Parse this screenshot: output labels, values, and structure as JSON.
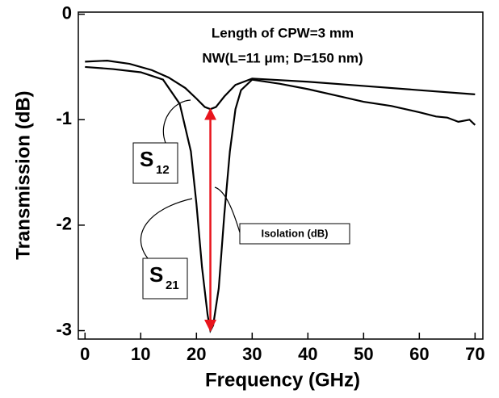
{
  "chart_data": {
    "type": "line",
    "x_label": "Frequency (GHz)",
    "y_label": "Transmission (dB)",
    "annotations": [
      "Length of CPW=3 mm",
      "NW(L=11 μm; D=150 nm)",
      "Isolation (dB)"
    ],
    "xlim": [
      -1.2,
      71.4
    ],
    "ylim": [
      -3.08,
      0.02
    ],
    "xticks": [
      0,
      10,
      20,
      30,
      40,
      50,
      60,
      70
    ],
    "yticks": [
      0,
      -1,
      -2,
      -3
    ],
    "series": [
      {
        "label": {
          "text": "S",
          "subscript": "21"
        },
        "color": "#000000",
        "x": [
          0,
          5,
          10,
          14,
          17,
          19,
          20,
          21,
          22,
          22.5,
          23,
          24,
          25,
          26,
          27,
          28,
          30,
          35,
          40,
          45,
          50,
          55,
          60,
          63,
          65,
          67,
          69,
          70
        ],
        "values": [
          -0.5,
          -0.52,
          -0.55,
          -0.62,
          -0.85,
          -1.3,
          -1.8,
          -2.4,
          -2.85,
          -3.0,
          -2.95,
          -2.6,
          -1.9,
          -1.3,
          -0.9,
          -0.72,
          -0.62,
          -0.66,
          -0.71,
          -0.77,
          -0.83,
          -0.87,
          -0.93,
          -0.97,
          -0.98,
          -1.02,
          -1.0,
          -1.05
        ]
      },
      {
        "label": {
          "text": "S",
          "subscript": "12"
        },
        "color": "#000000",
        "x": [
          0,
          4,
          8,
          12,
          15,
          18,
          20,
          21.5,
          22.5,
          23.5,
          25,
          27,
          30,
          40,
          50,
          60,
          70
        ],
        "values": [
          -0.45,
          -0.44,
          -0.47,
          -0.53,
          -0.6,
          -0.7,
          -0.8,
          -0.88,
          -0.9,
          -0.88,
          -0.78,
          -0.67,
          -0.61,
          -0.64,
          -0.68,
          -0.72,
          -0.76
        ]
      }
    ],
    "arrow": {
      "x": 22.5,
      "from": -3.0,
      "to": -0.9,
      "color": "#e8141c"
    }
  }
}
